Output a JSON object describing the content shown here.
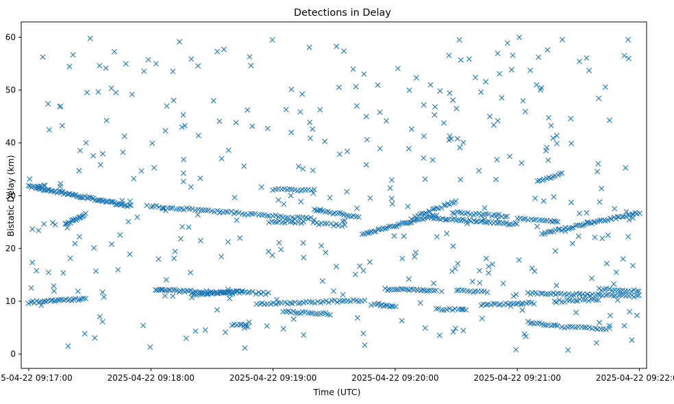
{
  "chart_data": {
    "type": "scatter",
    "title": "Detections in Delay",
    "xlabel": "Time (UTC)",
    "ylabel": "Bistatic Delay (km)",
    "marker": "x",
    "color": "#1f77b4",
    "x_unit": "seconds since 2025-04-22 09:17:00",
    "xlim": [
      -3.7,
      303.5
    ],
    "ylim": [
      -2.7,
      62.9
    ],
    "x_tick_values": [
      0,
      60,
      120,
      180,
      240,
      300
    ],
    "x_tick_labels": [
      "2025-04-22 09:17:00",
      "2025-04-22 09:18:00",
      "2025-04-22 09:19:00",
      "2025-04-22 09:20:00",
      "2025-04-22 09:21:00",
      "2025-04-22 09:22:00"
    ],
    "y_tick_values": [
      0,
      10,
      20,
      30,
      40,
      50,
      60
    ],
    "y_tick_labels": [
      "0",
      "10",
      "20",
      "30",
      "40",
      "50",
      "60"
    ],
    "series": [
      {
        "name": "detections",
        "note": "tracks follow the visible linear trends; sparse clutter points spread over 0-60 km",
        "tracks": [
          {
            "x0": 0,
            "y0": 31.8,
            "x1": 50,
            "y1": 28.0,
            "n": 70
          },
          {
            "x0": 18,
            "y0": 24.5,
            "x1": 28,
            "y1": 26.5,
            "n": 18
          },
          {
            "x0": 60,
            "y0": 28.0,
            "x1": 140,
            "y1": 25.6,
            "n": 60
          },
          {
            "x0": 120,
            "y0": 31.2,
            "x1": 140,
            "y1": 31.0,
            "n": 16
          },
          {
            "x0": 118,
            "y0": 25.1,
            "x1": 135,
            "y1": 25.0,
            "n": 14
          },
          {
            "x0": 140,
            "y0": 27.3,
            "x1": 162,
            "y1": 26.0,
            "n": 20
          },
          {
            "x0": 140,
            "y0": 24.8,
            "x1": 155,
            "y1": 24.3,
            "n": 12
          },
          {
            "x0": 164,
            "y0": 22.7,
            "x1": 200,
            "y1": 26.3,
            "n": 40
          },
          {
            "x0": 198,
            "y0": 25.8,
            "x1": 240,
            "y1": 24.6,
            "n": 40
          },
          {
            "x0": 190,
            "y0": 26.0,
            "x1": 210,
            "y1": 29.0,
            "n": 20
          },
          {
            "x0": 208,
            "y0": 26.8,
            "x1": 235,
            "y1": 26.2,
            "n": 22
          },
          {
            "x0": 240,
            "y0": 25.7,
            "x1": 260,
            "y1": 25.0,
            "n": 16
          },
          {
            "x0": 252,
            "y0": 22.8,
            "x1": 300,
            "y1": 26.8,
            "n": 50
          },
          {
            "x0": 250,
            "y0": 32.6,
            "x1": 262,
            "y1": 34.2,
            "n": 12
          },
          {
            "x0": 4,
            "y0": 31.8,
            "x1": 8,
            "y1": 31.8,
            "n": 6
          },
          {
            "x0": 0,
            "y0": 9.8,
            "x1": 28,
            "y1": 10.5,
            "n": 30
          },
          {
            "x0": 62,
            "y0": 12.2,
            "x1": 100,
            "y1": 11.5,
            "n": 40
          },
          {
            "x0": 80,
            "y0": 11.3,
            "x1": 105,
            "y1": 12.0,
            "n": 26
          },
          {
            "x0": 98,
            "y0": 11.8,
            "x1": 118,
            "y1": 11.5,
            "n": 16
          },
          {
            "x0": 112,
            "y0": 9.5,
            "x1": 165,
            "y1": 10.2,
            "n": 40
          },
          {
            "x0": 125,
            "y0": 8.0,
            "x1": 148,
            "y1": 7.6,
            "n": 20
          },
          {
            "x0": 170,
            "y0": 9.5,
            "x1": 180,
            "y1": 9.0,
            "n": 12
          },
          {
            "x0": 175,
            "y0": 12.3,
            "x1": 200,
            "y1": 12.0,
            "n": 24
          },
          {
            "x0": 200,
            "y0": 8.6,
            "x1": 215,
            "y1": 8.3,
            "n": 12
          },
          {
            "x0": 210,
            "y0": 12.1,
            "x1": 225,
            "y1": 11.8,
            "n": 12
          },
          {
            "x0": 222,
            "y0": 9.3,
            "x1": 248,
            "y1": 9.7,
            "n": 22
          },
          {
            "x0": 245,
            "y0": 11.5,
            "x1": 300,
            "y1": 11.0,
            "n": 44
          },
          {
            "x0": 245,
            "y0": 6.0,
            "x1": 260,
            "y1": 5.3,
            "n": 14
          },
          {
            "x0": 258,
            "y0": 10.0,
            "x1": 280,
            "y1": 10.3,
            "n": 18
          },
          {
            "x0": 262,
            "y0": 5.2,
            "x1": 285,
            "y1": 4.8,
            "n": 18
          },
          {
            "x0": 280,
            "y0": 12.3,
            "x1": 300,
            "y1": 12.0,
            "n": 16
          },
          {
            "x0": 100,
            "y0": 5.5,
            "x1": 108,
            "y1": 5.4,
            "n": 8
          }
        ],
        "clutter_count": 380,
        "clutter_y_range": [
          0.5,
          60
        ]
      }
    ]
  }
}
